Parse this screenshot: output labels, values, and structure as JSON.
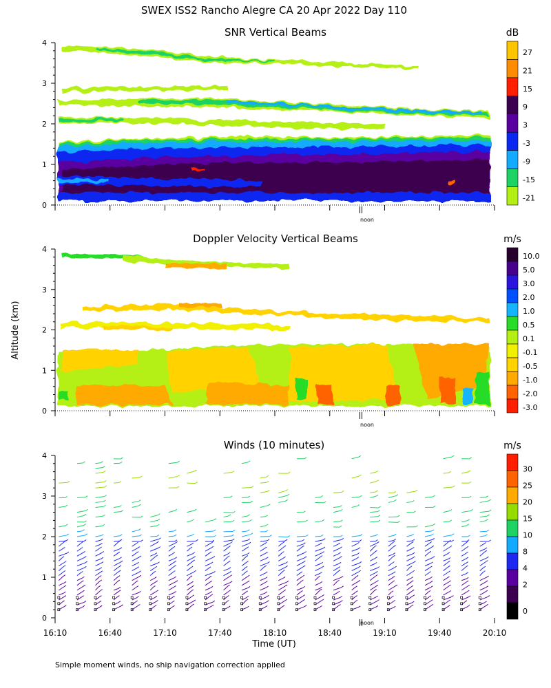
{
  "title": "SWEX ISS2 Rancho Alegre CA  20 Apr 2022 Day 110",
  "ylabel": "Altitude (km)",
  "xlabel": "Time (UT)",
  "noon_label": "noon",
  "footnote": "Simple moment winds, no ship navigation correction applied",
  "chart_data": [
    {
      "type": "heatmap",
      "title": "SNR Vertical Beams",
      "ylabel": "Altitude (km)",
      "ylim": [
        0,
        4
      ],
      "yticks": [
        "0",
        "1",
        "2",
        "3",
        "4"
      ],
      "xlim_minutes": [
        970,
        1210
      ],
      "colorbar": {
        "unit": "dB",
        "labels": [
          "27",
          "21",
          "15",
          "9",
          "3",
          "-3",
          "-9",
          "-15",
          "-21"
        ],
        "colors": [
          "#fdc400",
          "#ff8c00",
          "#ff1e00",
          "#3c0050",
          "#5a00a0",
          "#0a28f0",
          "#14aaff",
          "#1ed264",
          "#b4f014"
        ]
      },
      "layers": [
        {
          "alt_min": 3.8,
          "alt_max": 3.92,
          "class": "-15 to -21 dB"
        },
        {
          "alt_min": 2.15,
          "alt_max": 2.6,
          "class": "-9 to -21 dB"
        },
        {
          "alt_min": 0.1,
          "alt_max": 1.55,
          "class": "-9 to 9 dB"
        }
      ]
    },
    {
      "type": "heatmap",
      "title": "Doppler Velocity Vertical Beams",
      "ylabel": "Altitude (km)",
      "ylim": [
        0,
        4
      ],
      "yticks": [
        "0",
        "1",
        "2",
        "3",
        "4"
      ],
      "xlim_minutes": [
        970,
        1210
      ],
      "colorbar": {
        "unit": "m/s",
        "labels": [
          "10.0",
          "5.0",
          "3.0",
          "2.0",
          "1.0",
          "0.5",
          "0.1",
          "-0.1",
          "-0.5",
          "-1.0",
          "-2.0",
          "-3.0"
        ],
        "colors": [
          "#28002d",
          "#46008c",
          "#2d14dc",
          "#0050ff",
          "#14b4ff",
          "#28dc28",
          "#b4f014",
          "#f0f000",
          "#ffd200",
          "#ffaa00",
          "#ff6400",
          "#ff1e00"
        ]
      },
      "layers": [
        {
          "alt_min": 0.1,
          "alt_max": 1.65,
          "class": "-1.0 to 0.5 m/s"
        },
        {
          "alt_min": 2.1,
          "alt_max": 2.6,
          "class": "-0.5 to 0.1 m/s"
        }
      ]
    },
    {
      "type": "scatter",
      "title": "Winds (10 minutes)",
      "ylabel": "Altitude (km)",
      "xlabel": "Time (UT)",
      "ylim": [
        0,
        4
      ],
      "yticks": [
        "0",
        "1",
        "2",
        "3",
        "4"
      ],
      "xlim_minutes": [
        970,
        1210
      ],
      "xticks": [
        "16:10",
        "16:40",
        "17:10",
        "17:40",
        "18:10",
        "18:40",
        "19:10",
        "19:40",
        "20:10"
      ],
      "colorbar": {
        "unit": "m/s",
        "labels": [
          "30",
          "25",
          "20",
          "15",
          "10",
          "8",
          "4",
          "2",
          "0"
        ],
        "colors": [
          "#ff1e00",
          "#ff6400",
          "#ffaa00",
          "#96dc00",
          "#1ed264",
          "#14aaff",
          "#1e28f0",
          "#5a00a0",
          "#3c0050",
          "#000000"
        ]
      },
      "profiles_every_minutes": 10
    }
  ]
}
